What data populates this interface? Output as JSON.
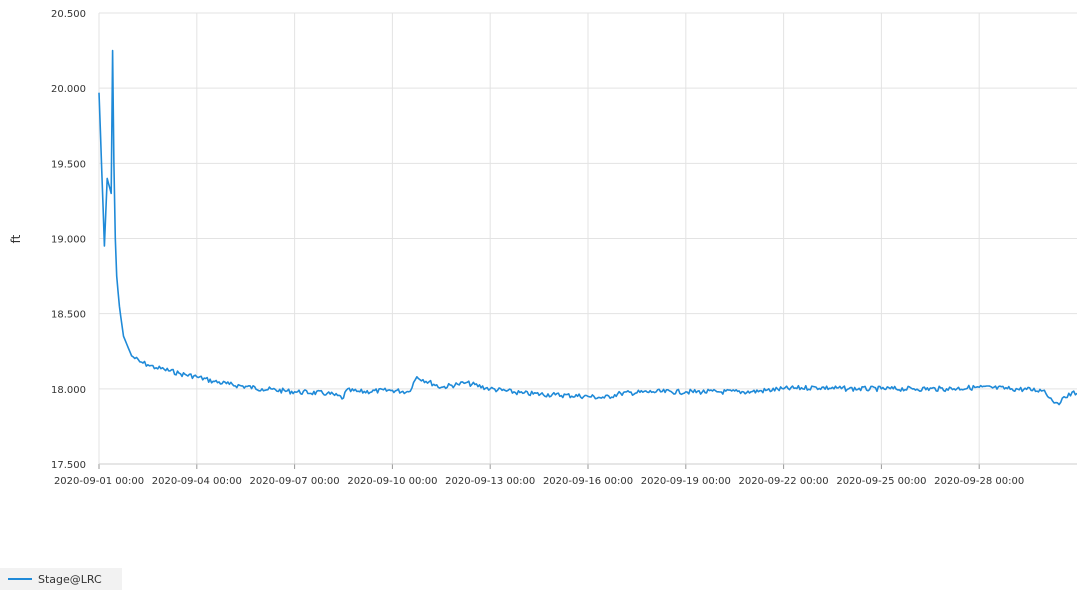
{
  "chart_data": {
    "type": "line",
    "title": "",
    "xlabel": "",
    "ylabel": "ft",
    "ylim": [
      17.5,
      20.5
    ],
    "yticks": [
      "17.500",
      "18.000",
      "18.500",
      "19.000",
      "19.500",
      "20.000",
      "20.500"
    ],
    "xlim": [
      "2020-09-01",
      "2020-10-01"
    ],
    "xticks": [
      "2020-09-01 00:00",
      "2020-09-04 00:00",
      "2020-09-07 00:00",
      "2020-09-10 00:00",
      "2020-09-13 00:00",
      "2020-09-16 00:00",
      "2020-09-19 00:00",
      "2020-09-22 00:00",
      "2020-09-25 00:00",
      "2020-09-28 00:00"
    ],
    "grid": true,
    "legend_position": "bottom-left",
    "series": [
      {
        "name": "Stage@LRC",
        "color": "#1f8ad8",
        "x": [
          "2020-09-01 00:00",
          "2020-09-01 04:00",
          "2020-09-01 06:00",
          "2020-09-01 09:00",
          "2020-09-01 10:00",
          "2020-09-01 11:00",
          "2020-09-01 12:00",
          "2020-09-01 13:00",
          "2020-09-01 15:00",
          "2020-09-01 18:00",
          "2020-09-02 00:00",
          "2020-09-02 06:00",
          "2020-09-02 12:00",
          "2020-09-02 18:00",
          "2020-09-03 00:00",
          "2020-09-03 12:00",
          "2020-09-04 00:00",
          "2020-09-04 12:00",
          "2020-09-05 00:00",
          "2020-09-06 00:00",
          "2020-09-07 00:00",
          "2020-09-08 00:00",
          "2020-09-08 12:00",
          "2020-09-08 14:00",
          "2020-09-09 00:00",
          "2020-09-10 00:00",
          "2020-09-10 12:00",
          "2020-09-10 18:00",
          "2020-09-11 12:00",
          "2020-09-12 00:00",
          "2020-09-12 06:00",
          "2020-09-13 00:00",
          "2020-09-14 00:00",
          "2020-09-15 00:00",
          "2020-09-16 00:00",
          "2020-09-16 12:00",
          "2020-09-17 00:00",
          "2020-09-18 00:00",
          "2020-09-19 00:00",
          "2020-09-20 00:00",
          "2020-09-21 00:00",
          "2020-09-22 00:00",
          "2020-09-23 00:00",
          "2020-09-24 00:00",
          "2020-09-25 00:00",
          "2020-09-26 00:00",
          "2020-09-27 00:00",
          "2020-09-28 00:00",
          "2020-09-29 00:00",
          "2020-09-30 00:00",
          "2020-09-30 06:00",
          "2020-09-30 12:00",
          "2020-09-30 18:00",
          "2020-10-01 00:00"
        ],
        "y": [
          19.97,
          18.95,
          19.4,
          19.3,
          20.25,
          19.5,
          19.0,
          18.75,
          18.55,
          18.35,
          18.22,
          18.18,
          18.16,
          18.14,
          18.13,
          18.1,
          18.08,
          18.05,
          18.03,
          18.0,
          17.98,
          17.97,
          17.94,
          17.99,
          17.98,
          17.99,
          17.98,
          18.08,
          18.01,
          18.03,
          18.04,
          18.0,
          17.97,
          17.96,
          17.95,
          17.94,
          17.97,
          17.98,
          17.98,
          17.98,
          17.98,
          18.0,
          18.01,
          18.0,
          18.0,
          18.0,
          18.0,
          18.01,
          18.0,
          17.99,
          17.92,
          17.91,
          17.97,
          17.97
        ]
      }
    ]
  }
}
